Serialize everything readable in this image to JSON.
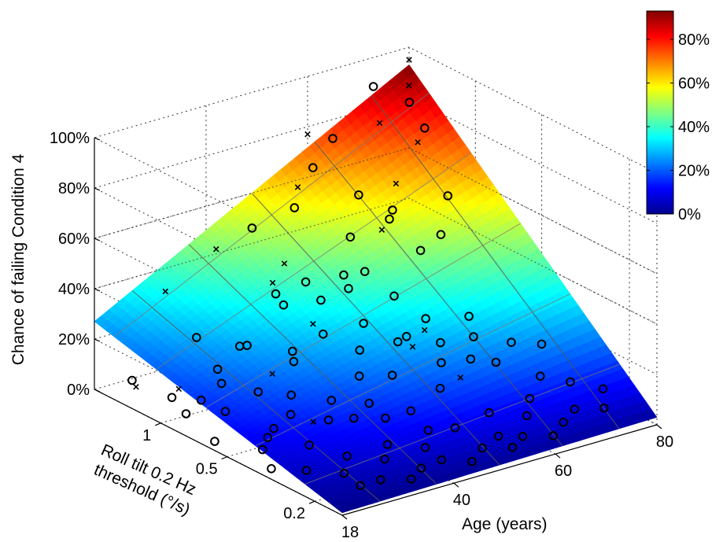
{
  "chart_data": {
    "type": "surface3d",
    "title": "",
    "zlabel": "Chance of failing Condition 4",
    "xlabel": "Age (years)",
    "ylabel": "Roll tilt 0.2 Hz threshold (°/s)",
    "x_ticks": [
      "18",
      "40",
      "60",
      "80"
    ],
    "x_tick_values": [
      18,
      40,
      60,
      80
    ],
    "y_ticks": [
      "0.2",
      "0.5",
      "1"
    ],
    "y_tick_values": [
      0.2,
      0.5,
      1
    ],
    "y_scale": "log",
    "z_ticks": [
      "0%",
      "20%",
      "40%",
      "60%",
      "80%",
      "100%"
    ],
    "z_tick_values": [
      0,
      20,
      40,
      60,
      80,
      100
    ],
    "xlim": [
      18,
      80
    ],
    "ylim": [
      0.15,
      2.0
    ],
    "zlim": [
      0,
      100
    ],
    "grid": true,
    "colormap": "jet",
    "colorbar": {
      "ticks": [
        "0%",
        "20%",
        "40%",
        "60%",
        "80%"
      ],
      "tick_values": [
        0,
        20,
        40,
        60,
        80
      ],
      "range": [
        0,
        93
      ]
    },
    "surface_corners": {
      "age18_thr0.15": 1,
      "age80_thr0.15": 3,
      "age18_thr2.0": 27,
      "age80_thr2.0": 93
    },
    "legend": {
      "circle": "",
      "cross": ""
    },
    "points_failed": [
      [
        80,
        2.0,
        95
      ],
      [
        78,
        1.8,
        88
      ],
      [
        75,
        1.4,
        72
      ],
      [
        70,
        1.6,
        80
      ],
      [
        60,
        2.0,
        77
      ],
      [
        55,
        1.7,
        62
      ],
      [
        72,
        1.5,
        56
      ],
      [
        65,
        1.2,
        46
      ],
      [
        50,
        1.5,
        37
      ],
      [
        40,
        1.8,
        45
      ],
      [
        45,
        1.3,
        35
      ],
      [
        30,
        1.8,
        34
      ],
      [
        48,
        1.0,
        22
      ],
      [
        58,
        0.6,
        17
      ],
      [
        38,
        0.9,
        10
      ],
      [
        62,
        0.45,
        8
      ],
      [
        25,
        1.2,
        6
      ],
      [
        22,
        1.6,
        3
      ],
      [
        68,
        0.9,
        10
      ],
      [
        35,
        0.5,
        4
      ]
    ],
    "points_passed": [
      [
        77,
        1.7,
        83
      ],
      [
        72,
        1.9,
        90
      ],
      [
        64,
        1.9,
        74
      ],
      [
        58,
        1.7,
        68
      ],
      [
        52,
        1.5,
        58
      ],
      [
        46,
        1.7,
        51
      ],
      [
        68,
        1.3,
        47
      ],
      [
        60,
        1.1,
        34
      ],
      [
        55,
        1.0,
        32
      ],
      [
        62,
        0.9,
        27
      ],
      [
        50,
        1.2,
        34
      ],
      [
        44,
        1.1,
        30
      ],
      [
        70,
        1.4,
        48
      ],
      [
        75,
        1.1,
        40
      ],
      [
        80,
        1.7,
        71
      ],
      [
        78,
        1.2,
        52
      ],
      [
        66,
        0.8,
        18
      ],
      [
        58,
        0.7,
        16
      ],
      [
        48,
        0.9,
        20
      ],
      [
        40,
        0.8,
        16
      ],
      [
        35,
        1.0,
        21
      ],
      [
        30,
        1.3,
        22
      ],
      [
        28,
        0.9,
        12
      ],
      [
        24,
        0.7,
        8
      ],
      [
        20,
        1.5,
        8
      ],
      [
        22,
        1.1,
        6
      ],
      [
        26,
        0.5,
        3
      ],
      [
        30,
        0.4,
        2
      ],
      [
        34,
        0.6,
        4
      ],
      [
        38,
        0.5,
        3
      ],
      [
        42,
        0.6,
        5
      ],
      [
        46,
        0.5,
        5
      ],
      [
        50,
        0.4,
        4
      ],
      [
        54,
        0.6,
        8
      ],
      [
        58,
        0.45,
        6
      ],
      [
        62,
        0.55,
        10
      ],
      [
        66,
        0.5,
        11
      ],
      [
        70,
        0.6,
        14
      ],
      [
        74,
        0.5,
        13
      ],
      [
        78,
        0.45,
        12
      ],
      [
        72,
        0.7,
        18
      ],
      [
        68,
        0.3,
        4
      ],
      [
        64,
        0.25,
        3
      ],
      [
        60,
        0.3,
        3
      ],
      [
        56,
        0.22,
        2
      ],
      [
        52,
        0.28,
        3
      ],
      [
        48,
        0.3,
        3
      ],
      [
        44,
        0.25,
        2
      ],
      [
        40,
        0.3,
        2
      ],
      [
        36,
        0.25,
        2
      ],
      [
        32,
        0.3,
        2
      ],
      [
        28,
        0.25,
        1
      ],
      [
        24,
        0.3,
        1
      ],
      [
        20,
        0.35,
        1
      ],
      [
        19,
        0.6,
        2
      ],
      [
        21,
        0.9,
        4
      ],
      [
        33,
        0.8,
        8
      ],
      [
        37,
        0.7,
        7
      ],
      [
        41,
        0.45,
        4
      ],
      [
        45,
        0.4,
        4
      ],
      [
        49,
        0.65,
        9
      ],
      [
        53,
        0.8,
        13
      ],
      [
        57,
        0.95,
        18
      ],
      [
        61,
        0.75,
        15
      ],
      [
        65,
        0.65,
        13
      ],
      [
        69,
        0.45,
        10
      ],
      [
        73,
        0.35,
        7
      ],
      [
        76,
        0.3,
        6
      ],
      [
        79,
        0.25,
        5
      ],
      [
        27,
        0.2,
        1
      ],
      [
        31,
        0.2,
        1
      ],
      [
        35,
        0.18,
        1
      ],
      [
        39,
        0.2,
        1
      ],
      [
        43,
        0.2,
        2
      ],
      [
        47,
        0.18,
        1
      ],
      [
        51,
        0.2,
        2
      ],
      [
        55,
        0.18,
        2
      ],
      [
        59,
        0.2,
        2
      ],
      [
        63,
        0.18,
        2
      ],
      [
        67,
        0.2,
        3
      ],
      [
        71,
        0.22,
        4
      ],
      [
        75,
        0.2,
        4
      ],
      [
        23,
        0.45,
        2
      ],
      [
        29,
        0.55,
        3
      ],
      [
        25,
        0.95,
        6
      ],
      [
        31,
        1.1,
        12
      ],
      [
        37,
        1.2,
        16
      ],
      [
        43,
        0.95,
        15
      ],
      [
        47,
        1.4,
        28
      ],
      [
        53,
        1.2,
        25
      ],
      [
        59,
        1.3,
        30
      ],
      [
        63,
        1.5,
        40
      ],
      [
        67,
        1.7,
        52
      ],
      [
        71,
        1.1,
        36
      ]
    ]
  }
}
